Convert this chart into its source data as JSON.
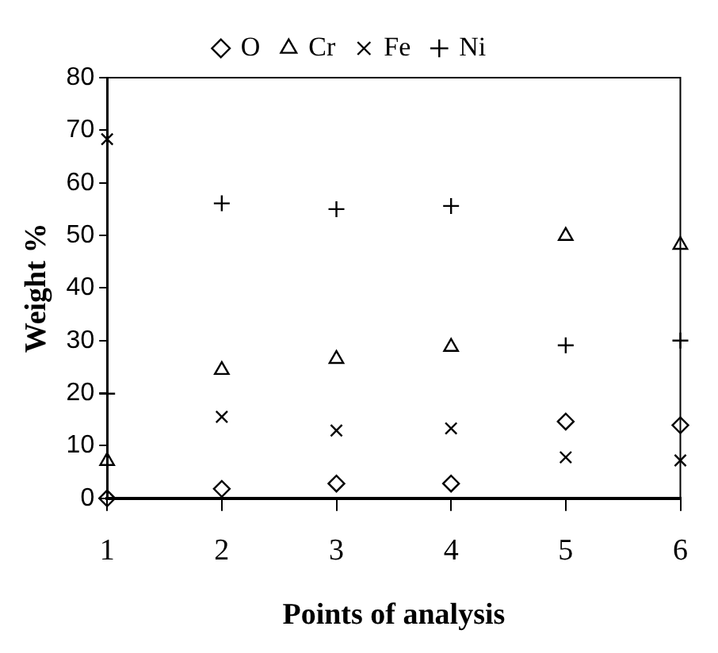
{
  "chart_data": {
    "type": "scatter",
    "xlabel": "Points of analysis",
    "ylabel": "Weight %",
    "x": [
      1,
      2,
      3,
      4,
      5,
      6
    ],
    "series": [
      {
        "name": "O",
        "color": "#000000",
        "marker": "diamond",
        "values": [
          0,
          1.8,
          2.8,
          2.8,
          14.6,
          13.9
        ]
      },
      {
        "name": "Cr",
        "color": "#000000",
        "marker": "triangle",
        "values": [
          7.1,
          24.4,
          26.5,
          28.8,
          49.9,
          48.2
        ]
      },
      {
        "name": "Fe",
        "color": "#000000",
        "marker": "cross",
        "values": [
          68.3,
          15.5,
          12.9,
          13.3,
          7.8,
          7.2
        ]
      },
      {
        "name": "Ni",
        "color": "#000000",
        "marker": "plus",
        "values": [
          19.9,
          56.1,
          55,
          55.6,
          29.1,
          30
        ]
      }
    ],
    "xlim": [
      1,
      6
    ],
    "xticks": [
      1,
      2,
      3,
      4,
      5,
      6
    ],
    "ylim": [
      0,
      80
    ],
    "yticks": [
      0,
      10,
      20,
      30,
      40,
      50,
      60,
      70,
      80
    ],
    "grid": false,
    "legend": "top"
  }
}
